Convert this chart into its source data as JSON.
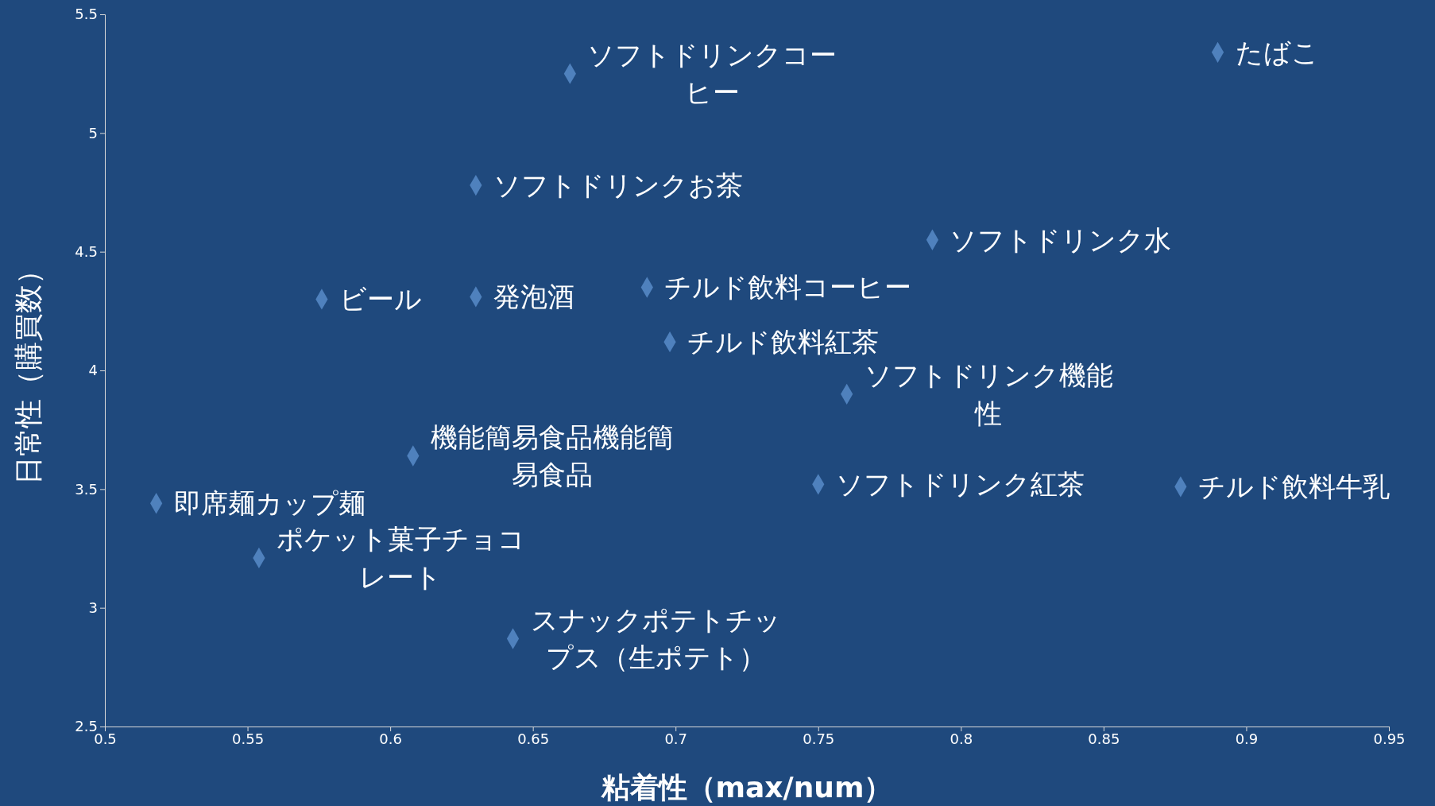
{
  "chart_data": {
    "type": "scatter",
    "xlabel": "粘着性（max/num）",
    "ylabel": "日常性（購買数）",
    "color": "#4f81bd",
    "marker": "diamond",
    "grid": false,
    "x": [
      0.89,
      0.663,
      0.63,
      0.79,
      0.576,
      0.63,
      0.69,
      0.698,
      0.76,
      0.608,
      0.75,
      0.877,
      0.518,
      0.554,
      0.643
    ],
    "values": [
      5.34,
      5.25,
      4.78,
      4.55,
      4.3,
      4.31,
      4.35,
      4.12,
      3.9,
      3.64,
      3.52,
      3.51,
      3.44,
      3.21,
      2.87
    ],
    "xlim": [
      0.5,
      0.95
    ],
    "xticks": [
      0.5,
      0.55,
      0.6,
      0.65,
      0.7,
      0.75,
      0.8,
      0.85,
      0.9,
      0.95
    ],
    "ylim": [
      2.5,
      5.5
    ],
    "yticks": [
      2.5,
      3,
      3.5,
      4,
      4.5,
      5,
      5.5
    ],
    "annotations": [
      {
        "text": "たばこ",
        "x": 0.89,
        "y": 5.34
      },
      {
        "text": "ソフトドリンクコーヒー",
        "x": 0.663,
        "y": 5.25
      },
      {
        "text": "ソフトドリンクお茶",
        "x": 0.63,
        "y": 4.78
      },
      {
        "text": "ソフトドリンク水",
        "x": 0.79,
        "y": 4.55
      },
      {
        "text": "ビール",
        "x": 0.576,
        "y": 4.3
      },
      {
        "text": "発泡酒",
        "x": 0.63,
        "y": 4.31
      },
      {
        "text": "チルド飲料コーヒー",
        "x": 0.69,
        "y": 4.35
      },
      {
        "text": "チルド飲料紅茶",
        "x": 0.698,
        "y": 4.12
      },
      {
        "text": "ソフトドリンク機能性",
        "x": 0.76,
        "y": 3.9
      },
      {
        "text": "機能簡易食品機能簡易食品",
        "x": 0.608,
        "y": 3.64
      },
      {
        "text": "ソフトドリンク紅茶",
        "x": 0.75,
        "y": 3.52
      },
      {
        "text": "チルド飲料牛乳",
        "x": 0.877,
        "y": 3.51
      },
      {
        "text": "即席麺カップ麺",
        "x": 0.518,
        "y": 3.44
      },
      {
        "text": "ポケット菓子チョコレート",
        "x": 0.554,
        "y": 3.21
      },
      {
        "text": "スナックポテトチップス（生ポテト）",
        "x": 0.643,
        "y": 2.87
      }
    ]
  }
}
